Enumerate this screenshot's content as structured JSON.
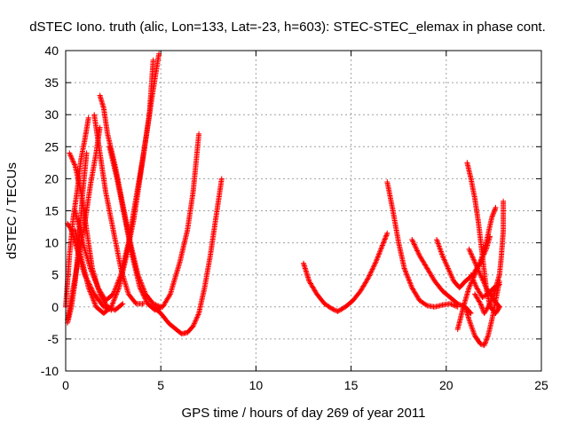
{
  "chart_data": {
    "type": "scatter",
    "title": "dSTEC Iono. truth (alic, Lon=133, Lat=-23, h=603): STEC-STEC_elemax in phase cont.",
    "xlabel": "GPS time / hours of day 269 of year 2011",
    "ylabel": "dSTEC  / TECUs",
    "xlim": [
      0,
      25
    ],
    "ylim": [
      -10,
      40
    ],
    "xticks": [
      0,
      5,
      10,
      15,
      20,
      25
    ],
    "yticks": [
      -10,
      -5,
      0,
      5,
      10,
      15,
      20,
      25,
      30,
      35,
      40
    ],
    "grid": true,
    "legend": "none",
    "marker": "+",
    "color": "#ff0000",
    "series": [
      {
        "points": [
          [
            0.0,
            0.0
          ],
          [
            0.2,
            8
          ],
          [
            0.4,
            14
          ],
          [
            0.6,
            18
          ],
          [
            0.8,
            23
          ],
          [
            1.0,
            26
          ],
          [
            1.2,
            29.5
          ]
        ]
      },
      {
        "points": [
          [
            0.1,
            -2.5
          ],
          [
            0.3,
            0
          ],
          [
            0.5,
            4
          ],
          [
            0.7,
            10
          ],
          [
            0.9,
            18
          ],
          [
            1.1,
            24
          ]
        ]
      },
      {
        "points": [
          [
            0.2,
            24
          ],
          [
            0.5,
            22
          ],
          [
            0.8,
            18
          ],
          [
            1.1,
            12
          ],
          [
            1.4,
            6
          ],
          [
            1.8,
            2
          ],
          [
            2.2,
            0
          ],
          [
            2.6,
            -0.5
          ],
          [
            3.0,
            0.5
          ]
        ]
      },
      {
        "points": [
          [
            0.1,
            13
          ],
          [
            0.3,
            12
          ],
          [
            0.6,
            9
          ],
          [
            1.0,
            5
          ],
          [
            1.5,
            2
          ],
          [
            2.0,
            0
          ],
          [
            2.4,
            -0.5
          ]
        ]
      },
      {
        "points": [
          [
            0.1,
            -2
          ],
          [
            0.4,
            3
          ],
          [
            0.7,
            8
          ],
          [
            1.0,
            13
          ],
          [
            1.3,
            19
          ],
          [
            1.6,
            24
          ],
          [
            1.8,
            28
          ]
        ]
      },
      {
        "points": [
          [
            0.5,
            12
          ],
          [
            0.8,
            8
          ],
          [
            1.2,
            3
          ],
          [
            1.6,
            0
          ],
          [
            2.0,
            -1
          ],
          [
            2.4,
            0
          ],
          [
            2.8,
            3
          ],
          [
            3.2,
            8
          ],
          [
            3.6,
            14
          ],
          [
            4.0,
            22
          ],
          [
            4.4,
            30
          ],
          [
            4.6,
            38.5
          ]
        ]
      },
      {
        "points": [
          [
            0.5,
            15
          ],
          [
            0.9,
            10
          ],
          [
            1.3,
            6
          ],
          [
            1.7,
            3
          ],
          [
            2.1,
            1
          ],
          [
            2.5,
            2
          ],
          [
            2.9,
            5
          ],
          [
            3.3,
            10
          ],
          [
            3.7,
            17
          ],
          [
            4.1,
            24
          ],
          [
            4.5,
            32
          ],
          [
            4.9,
            39.5
          ]
        ]
      },
      {
        "points": [
          [
            1.8,
            33
          ],
          [
            2.0,
            31
          ],
          [
            2.2,
            27
          ],
          [
            2.6,
            22
          ],
          [
            3.0,
            16
          ],
          [
            3.4,
            10
          ],
          [
            3.8,
            5
          ],
          [
            4.2,
            2
          ],
          [
            4.6,
            0.5
          ],
          [
            5.0,
            0
          ]
        ]
      },
      {
        "points": [
          [
            1.5,
            30
          ],
          [
            1.8,
            24
          ],
          [
            2.1,
            18
          ],
          [
            2.5,
            12
          ],
          [
            2.9,
            6
          ],
          [
            3.3,
            2
          ],
          [
            3.7,
            0.5
          ],
          [
            4.1,
            0.5
          ]
        ]
      },
      {
        "points": [
          [
            2.3,
            25
          ],
          [
            2.7,
            20
          ],
          [
            3.1,
            14
          ],
          [
            3.5,
            8
          ],
          [
            3.9,
            3
          ],
          [
            4.3,
            0.5
          ],
          [
            4.7,
            -0.5
          ],
          [
            5.1,
            0
          ],
          [
            5.5,
            2
          ],
          [
            6.0,
            7
          ],
          [
            6.4,
            12
          ],
          [
            6.7,
            18
          ],
          [
            7.0,
            27
          ]
        ]
      },
      {
        "points": [
          [
            4.6,
            0
          ],
          [
            5.0,
            -1
          ],
          [
            5.4,
            -2.5
          ],
          [
            5.8,
            -3.5
          ],
          [
            6.1,
            -4.2
          ],
          [
            6.4,
            -4
          ],
          [
            6.7,
            -3
          ],
          [
            7.0,
            -1
          ],
          [
            7.3,
            3
          ],
          [
            7.6,
            8
          ],
          [
            7.9,
            14
          ],
          [
            8.2,
            20
          ]
        ]
      },
      {
        "points": [
          [
            12.5,
            6.8
          ],
          [
            12.8,
            4
          ],
          [
            13.2,
            2
          ],
          [
            13.6,
            0.5
          ],
          [
            14.0,
            -0.3
          ],
          [
            14.3,
            -0.7
          ],
          [
            14.7,
            0
          ],
          [
            15.1,
            1
          ],
          [
            15.5,
            2.5
          ],
          [
            15.9,
            4.5
          ],
          [
            16.3,
            7
          ],
          [
            16.7,
            10
          ],
          [
            16.9,
            11.5
          ]
        ]
      },
      {
        "points": [
          [
            16.9,
            19.5
          ],
          [
            17.2,
            15
          ],
          [
            17.5,
            10
          ],
          [
            17.8,
            6
          ],
          [
            18.2,
            3
          ],
          [
            18.6,
            1
          ],
          [
            19.0,
            0.2
          ],
          [
            19.4,
            0
          ],
          [
            19.8,
            0.3
          ],
          [
            20.2,
            0.5
          ],
          [
            20.6,
            0
          ]
        ]
      },
      {
        "points": [
          [
            18.2,
            10.5
          ],
          [
            18.6,
            8
          ],
          [
            19.0,
            6
          ],
          [
            19.4,
            4
          ],
          [
            19.8,
            2.5
          ],
          [
            20.2,
            1.5
          ],
          [
            20.6,
            0.5
          ],
          [
            21.0,
            0
          ],
          [
            21.3,
            -1
          ]
        ]
      },
      {
        "points": [
          [
            19.5,
            10.5
          ],
          [
            19.8,
            8
          ],
          [
            20.1,
            6
          ],
          [
            20.4,
            4
          ],
          [
            20.7,
            3
          ],
          [
            21.0,
            4
          ],
          [
            21.4,
            5
          ],
          [
            21.8,
            7
          ],
          [
            22.1,
            9
          ],
          [
            22.3,
            11
          ]
        ]
      },
      {
        "points": [
          [
            20.6,
            -3.5
          ],
          [
            20.9,
            0
          ],
          [
            21.2,
            3
          ],
          [
            21.5,
            5
          ],
          [
            21.8,
            7
          ],
          [
            22.1,
            10
          ],
          [
            22.4,
            14
          ],
          [
            22.6,
            15.5
          ]
        ]
      },
      {
        "points": [
          [
            21.0,
            0
          ],
          [
            21.2,
            -2
          ],
          [
            21.5,
            -4.5
          ],
          [
            21.8,
            -5.8
          ],
          [
            22.0,
            -6
          ],
          [
            22.2,
            -4.5
          ],
          [
            22.4,
            -2
          ],
          [
            22.6,
            1
          ],
          [
            22.8,
            4
          ]
        ]
      },
      {
        "points": [
          [
            21.1,
            22.5
          ],
          [
            21.3,
            20
          ],
          [
            21.5,
            17
          ],
          [
            21.7,
            13
          ],
          [
            21.9,
            8
          ],
          [
            22.1,
            3
          ],
          [
            22.3,
            0
          ],
          [
            22.6,
            -1
          ],
          [
            22.8,
            0
          ]
        ]
      },
      {
        "points": [
          [
            21.2,
            9
          ],
          [
            21.5,
            7
          ],
          [
            21.8,
            5
          ],
          [
            22.1,
            3
          ],
          [
            22.4,
            1.5
          ],
          [
            22.8,
            0
          ]
        ]
      },
      {
        "points": [
          [
            21.5,
            2
          ],
          [
            21.8,
            0.5
          ],
          [
            22.0,
            -1
          ],
          [
            22.3,
            0.5
          ],
          [
            22.6,
            3
          ],
          [
            22.8,
            5
          ],
          [
            22.9,
            8
          ],
          [
            23.0,
            12
          ],
          [
            23.0,
            16.5
          ]
        ]
      },
      {
        "points": [
          [
            21.3,
            5
          ],
          [
            21.6,
            3
          ],
          [
            21.9,
            1.5
          ],
          [
            22.2,
            2
          ],
          [
            22.5,
            3
          ],
          [
            22.8,
            3.5
          ]
        ]
      }
    ]
  }
}
